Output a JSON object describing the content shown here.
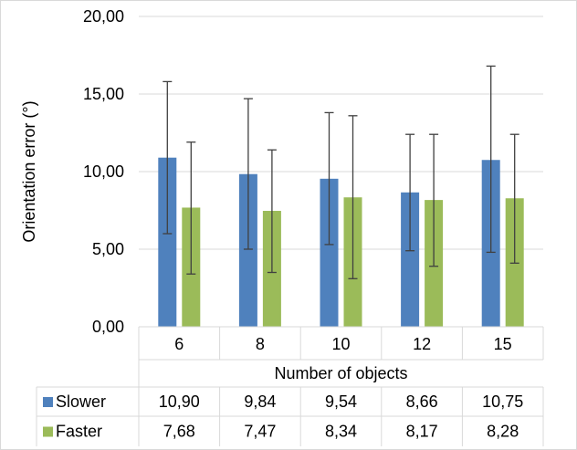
{
  "chart_data": {
    "type": "bar",
    "title": "",
    "xlabel": "Number of objects",
    "ylabel": "Orientation error (°)",
    "ylim": [
      0,
      20
    ],
    "yticks": [
      "0,00",
      "5,00",
      "10,00",
      "15,00",
      "20,00"
    ],
    "grid": true,
    "legend": "data-table",
    "categories": [
      "6",
      "8",
      "10",
      "12",
      "15"
    ],
    "series": [
      {
        "name": "Slower",
        "color": "#4f81bd",
        "values": [
          10.9,
          9.84,
          9.54,
          8.66,
          10.75
        ],
        "value_labels": [
          "10,90",
          "9,84",
          "9,54",
          "8,66",
          "10,75"
        ],
        "error_low": [
          6.0,
          5.0,
          5.3,
          4.9,
          4.8
        ],
        "error_high": [
          15.8,
          14.7,
          13.8,
          12.4,
          16.8
        ]
      },
      {
        "name": "Faster",
        "color": "#9bbb59",
        "values": [
          7.68,
          7.47,
          8.34,
          8.17,
          8.28
        ],
        "value_labels": [
          "7,68",
          "7,47",
          "8,34",
          "8,17",
          "8,28"
        ],
        "error_low": [
          3.4,
          3.5,
          3.1,
          3.9,
          4.1
        ],
        "error_high": [
          11.9,
          11.4,
          13.6,
          12.4,
          12.4
        ]
      }
    ]
  }
}
